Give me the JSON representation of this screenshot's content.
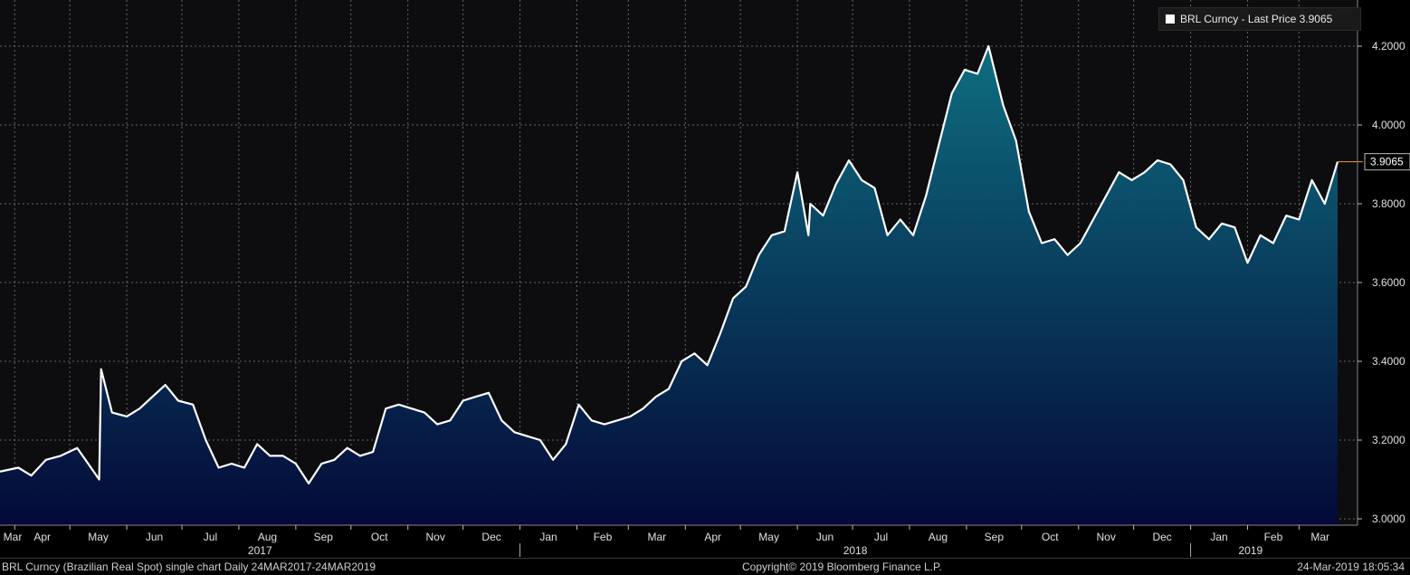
{
  "footer": {
    "left": "BRL Curncy (Brazilian Real Spot) single chart  Daily 24MAR2017-24MAR2019",
    "center": "Copyright© 2019 Bloomberg Finance L.P.",
    "right": "24-Mar-2019 18:05:34"
  },
  "legend": {
    "label": "BRL Curncy - Last Price 3.9065"
  },
  "colors": {
    "line": "#ffffff",
    "fill_top": "#0e6e80",
    "fill_bottom": "#040938",
    "background": "#0d0d10",
    "grid": "#666666",
    "last_marker": "#f0a030"
  },
  "chart_data": {
    "type": "area",
    "title": "",
    "xlabel": "",
    "ylabel": "",
    "ylim": [
      3.0,
      4.25
    ],
    "y_ticks": [
      "3.0000",
      "3.2000",
      "3.4000",
      "3.6000",
      "3.8000",
      "4.0000",
      "4.2000"
    ],
    "last_value_label": "3.9065",
    "grid": true,
    "legend_position": "top-right",
    "x_month_labels": [
      "Mar",
      "Apr",
      "May",
      "Jun",
      "Jul",
      "Aug",
      "Sep",
      "Oct",
      "Nov",
      "Dec",
      "Jan",
      "Feb",
      "Mar",
      "Apr",
      "May",
      "Jun",
      "Jul",
      "Aug",
      "Sep",
      "Oct",
      "Nov",
      "Dec",
      "Jan",
      "Feb",
      "Mar"
    ],
    "x_year_labels": [
      "2017",
      "2018",
      "2019"
    ],
    "series": [
      {
        "name": "BRL Curncy - Last Price",
        "dates": [
          "2017-03-24",
          "2017-04-03",
          "2017-04-10",
          "2017-04-18",
          "2017-04-26",
          "2017-05-05",
          "2017-05-17",
          "2017-05-18",
          "2017-05-24",
          "2017-06-01",
          "2017-06-08",
          "2017-06-15",
          "2017-06-22",
          "2017-06-29",
          "2017-07-07",
          "2017-07-14",
          "2017-07-21",
          "2017-07-28",
          "2017-08-04",
          "2017-08-11",
          "2017-08-18",
          "2017-08-25",
          "2017-09-01",
          "2017-09-08",
          "2017-09-15",
          "2017-09-22",
          "2017-09-29",
          "2017-10-06",
          "2017-10-13",
          "2017-10-20",
          "2017-10-27",
          "2017-11-03",
          "2017-11-10",
          "2017-11-17",
          "2017-11-24",
          "2017-12-01",
          "2017-12-08",
          "2017-12-15",
          "2017-12-22",
          "2017-12-29",
          "2018-01-05",
          "2018-01-12",
          "2018-01-19",
          "2018-01-26",
          "2018-02-02",
          "2018-02-09",
          "2018-02-16",
          "2018-02-23",
          "2018-03-02",
          "2018-03-09",
          "2018-03-16",
          "2018-03-23",
          "2018-03-30",
          "2018-04-06",
          "2018-04-13",
          "2018-04-20",
          "2018-04-27",
          "2018-05-04",
          "2018-05-11",
          "2018-05-18",
          "2018-05-25",
          "2018-06-01",
          "2018-06-07",
          "2018-06-08",
          "2018-06-15",
          "2018-06-22",
          "2018-06-29",
          "2018-07-06",
          "2018-07-13",
          "2018-07-20",
          "2018-07-27",
          "2018-08-03",
          "2018-08-10",
          "2018-08-17",
          "2018-08-24",
          "2018-08-31",
          "2018-09-07",
          "2018-09-13",
          "2018-09-21",
          "2018-09-28",
          "2018-10-05",
          "2018-10-12",
          "2018-10-19",
          "2018-10-26",
          "2018-11-02",
          "2018-11-09",
          "2018-11-16",
          "2018-11-23",
          "2018-11-30",
          "2018-12-07",
          "2018-12-14",
          "2018-12-21",
          "2018-12-28",
          "2019-01-04",
          "2019-01-11",
          "2019-01-18",
          "2019-01-25",
          "2019-02-01",
          "2019-02-08",
          "2019-02-15",
          "2019-02-22",
          "2019-03-01",
          "2019-03-08",
          "2019-03-15",
          "2019-03-22"
        ],
        "values": [
          3.12,
          3.13,
          3.11,
          3.15,
          3.16,
          3.18,
          3.1,
          3.38,
          3.27,
          3.26,
          3.28,
          3.31,
          3.34,
          3.3,
          3.29,
          3.2,
          3.13,
          3.14,
          3.13,
          3.19,
          3.16,
          3.16,
          3.14,
          3.09,
          3.14,
          3.15,
          3.18,
          3.16,
          3.17,
          3.28,
          3.29,
          3.28,
          3.27,
          3.24,
          3.25,
          3.3,
          3.31,
          3.32,
          3.25,
          3.22,
          3.21,
          3.2,
          3.15,
          3.19,
          3.29,
          3.25,
          3.24,
          3.25,
          3.26,
          3.28,
          3.31,
          3.33,
          3.4,
          3.42,
          3.39,
          3.47,
          3.56,
          3.59,
          3.67,
          3.72,
          3.73,
          3.88,
          3.72,
          3.8,
          3.77,
          3.85,
          3.91,
          3.86,
          3.84,
          3.72,
          3.76,
          3.72,
          3.82,
          3.95,
          4.08,
          4.14,
          4.13,
          4.2,
          4.05,
          3.96,
          3.78,
          3.7,
          3.71,
          3.67,
          3.7,
          3.76,
          3.82,
          3.88,
          3.86,
          3.88,
          3.91,
          3.9,
          3.86,
          3.74,
          3.71,
          3.75,
          3.74,
          3.65,
          3.72,
          3.7,
          3.77,
          3.76,
          3.86,
          3.8,
          3.9065
        ]
      }
    ]
  }
}
